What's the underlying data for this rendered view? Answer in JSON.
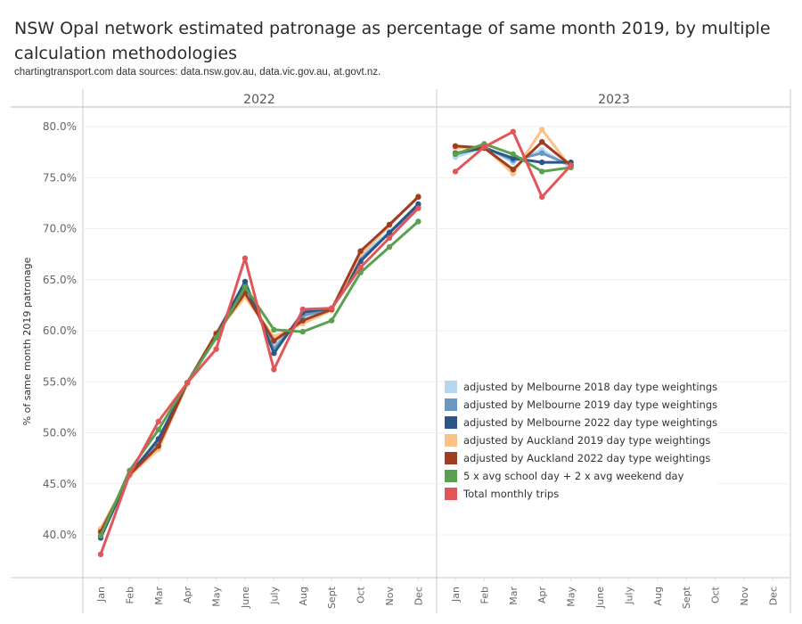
{
  "chart_data": {
    "type": "line",
    "title": "NSW Opal network estimated patronage as percentage of same month 2019, by multiple calculation methodologies",
    "subtitle": "chartingtransport.com data sources: data.nsw.gov.au, data.vic.gov.au, at.govt.nz.",
    "ylabel": "% of same month 2019 patronage",
    "xlabel": "",
    "ylim": [
      36.3,
      81.3
    ],
    "yticks": [
      "80.0%",
      "75.0%",
      "70.0%",
      "65.0%",
      "60.0%",
      "55.0%",
      "50.0%",
      "45.0%",
      "40.0%"
    ],
    "ytick_values": [
      80,
      75,
      70,
      65,
      60,
      55,
      50,
      45,
      40
    ],
    "grid": true,
    "legend_position": "center-right",
    "panels": [
      "2022",
      "2023"
    ],
    "categories": [
      "Jan",
      "Feb",
      "Mar",
      "Apr",
      "May",
      "June",
      "July",
      "Aug",
      "Sept",
      "Oct",
      "Nov",
      "Dec"
    ],
    "series": [
      {
        "name": "adjusted by Melbourne 2018 day type weightings",
        "color": "#b5d8ef",
        "values": {
          "2022": [
            40.0,
            45.8,
            49.0,
            54.9,
            59.8,
            64.2,
            58.5,
            61.3,
            62.0,
            67.3,
            69.7,
            72.1
          ],
          "2023": [
            77.0,
            78.0,
            76.5,
            77.7,
            76.0
          ]
        }
      },
      {
        "name": "adjusted by Melbourne 2019 day type weightings",
        "color": "#6a98c3",
        "values": {
          "2022": [
            39.9,
            45.9,
            49.2,
            54.9,
            59.7,
            64.5,
            58.2,
            61.5,
            62.1,
            67.0,
            69.6,
            72.1
          ],
          "2023": [
            77.3,
            78.0,
            76.7,
            77.4,
            76.2
          ]
        }
      },
      {
        "name": "adjusted by Melbourne 2022 day type weightings",
        "color": "#2b5786",
        "values": {
          "2022": [
            39.7,
            45.9,
            49.4,
            54.9,
            59.6,
            64.8,
            57.8,
            61.8,
            62.2,
            66.8,
            69.6,
            72.4
          ],
          "2023": [
            77.4,
            77.9,
            76.9,
            76.5,
            76.5
          ]
        }
      },
      {
        "name": "adjusted by Auckland 2019 day type weightings",
        "color": "#fdc086",
        "values": {
          "2022": [
            40.6,
            45.8,
            48.4,
            54.8,
            59.8,
            63.3,
            59.4,
            60.7,
            62.0,
            67.5,
            70.3,
            73.2
          ],
          "2023": [
            77.9,
            78.0,
            75.4,
            79.7,
            76.0
          ]
        }
      },
      {
        "name": "adjusted by Auckland 2022 day type weightings",
        "color": "#9e3d22",
        "values": {
          "2022": [
            40.3,
            45.9,
            48.7,
            54.9,
            59.7,
            63.7,
            59.0,
            61.0,
            62.1,
            67.8,
            70.4,
            73.1
          ],
          "2023": [
            78.1,
            77.9,
            75.8,
            78.5,
            76.2
          ]
        }
      },
      {
        "name": "5 x avg school day + 2 x avg weekend day",
        "color": "#59a14f",
        "values": {
          "2022": [
            39.9,
            46.3,
            50.3,
            54.9,
            59.3,
            64.3,
            60.1,
            59.9,
            61.0,
            65.7,
            68.2,
            70.7
          ],
          "2023": [
            77.3,
            78.3,
            77.3,
            75.6,
            76.0
          ]
        }
      },
      {
        "name": "Total monthly trips",
        "color": "#e15759",
        "values": {
          "2022": [
            38.1,
            45.9,
            51.1,
            54.9,
            58.2,
            67.1,
            56.2,
            62.1,
            62.2,
            66.2,
            69.1,
            72.0
          ],
          "2023": [
            75.6,
            78.0,
            79.5,
            73.1,
            76.2
          ]
        }
      }
    ]
  }
}
